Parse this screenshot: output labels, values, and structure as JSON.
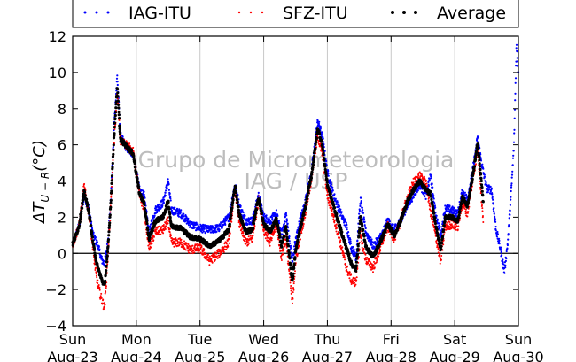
{
  "chart_data": {
    "type": "scatter",
    "title": "",
    "xlabel": "",
    "ylabel": "ΔT",
    "ylabel_sub": "U − R",
    "ylabel_unit": "(°C)",
    "ylim": [
      -4,
      12
    ],
    "yticks": [
      -4,
      -2,
      0,
      2,
      4,
      6,
      8,
      10,
      12
    ],
    "xlim": [
      0,
      7
    ],
    "grid_x": true,
    "grid_y": false,
    "zero_line": true,
    "legend": {
      "placement": "top",
      "frame": true
    },
    "watermark": [
      "Grupo de Micrometeorologia",
      "IAG / USP"
    ],
    "xticks": [
      {
        "x": 0,
        "day": "Sun",
        "date": "Aug-23"
      },
      {
        "x": 1,
        "day": "Mon",
        "date": "Aug-24"
      },
      {
        "x": 2,
        "day": "Tue",
        "date": "Aug-25"
      },
      {
        "x": 3,
        "day": "Wed",
        "date": "Aug-26"
      },
      {
        "x": 4,
        "day": "Thu",
        "date": "Aug-27"
      },
      {
        "x": 5,
        "day": "Fri",
        "date": "Aug-28"
      },
      {
        "x": 6,
        "day": "Sat",
        "date": "Aug-29"
      },
      {
        "x": 7,
        "day": "Sun",
        "date": "Aug-30"
      }
    ],
    "series": [
      {
        "name": "IAG-ITU",
        "color": "#0000ff",
        "xmax": 7.0,
        "points": [
          [
            0.0,
            0.5
          ],
          [
            0.1,
            1.5
          ],
          [
            0.18,
            3.2
          ],
          [
            0.25,
            2.5
          ],
          [
            0.32,
            1.0
          ],
          [
            0.4,
            0.4
          ],
          [
            0.45,
            -0.3
          ],
          [
            0.5,
            -0.6
          ],
          [
            0.55,
            0.5
          ],
          [
            0.6,
            3.0
          ],
          [
            0.65,
            7.0
          ],
          [
            0.7,
            9.8
          ],
          [
            0.75,
            6.5
          ],
          [
            0.85,
            5.8
          ],
          [
            0.95,
            5.5
          ],
          [
            1.05,
            3.5
          ],
          [
            1.12,
            3.2
          ],
          [
            1.2,
            1.2
          ],
          [
            1.3,
            2.4
          ],
          [
            1.42,
            2.8
          ],
          [
            1.5,
            4.0
          ],
          [
            1.55,
            2.4
          ],
          [
            1.7,
            2.2
          ],
          [
            1.85,
            1.6
          ],
          [
            2.0,
            1.4
          ],
          [
            2.15,
            1.3
          ],
          [
            2.3,
            1.4
          ],
          [
            2.45,
            2.0
          ],
          [
            2.55,
            3.8
          ],
          [
            2.62,
            2.6
          ],
          [
            2.72,
            1.8
          ],
          [
            2.82,
            1.8
          ],
          [
            2.92,
            3.2
          ],
          [
            3.0,
            2.0
          ],
          [
            3.1,
            1.8
          ],
          [
            3.2,
            2.2
          ],
          [
            3.28,
            1.0
          ],
          [
            3.35,
            2.2
          ],
          [
            3.45,
            -0.5
          ],
          [
            3.5,
            0.7
          ],
          [
            3.55,
            1.5
          ],
          [
            3.65,
            2.8
          ],
          [
            3.75,
            4.5
          ],
          [
            3.85,
            7.3
          ],
          [
            3.92,
            6.5
          ],
          [
            4.0,
            4.5
          ],
          [
            4.1,
            3.2
          ],
          [
            4.2,
            2.3
          ],
          [
            4.3,
            1.5
          ],
          [
            4.38,
            0.3
          ],
          [
            4.45,
            -0.2
          ],
          [
            4.52,
            3.0
          ],
          [
            4.6,
            1.2
          ],
          [
            4.72,
            0.4
          ],
          [
            4.85,
            1.0
          ],
          [
            4.95,
            1.8
          ],
          [
            5.05,
            1.3
          ],
          [
            5.15,
            1.8
          ],
          [
            5.25,
            2.6
          ],
          [
            5.35,
            3.2
          ],
          [
            5.45,
            3.8
          ],
          [
            5.55,
            3.2
          ],
          [
            5.62,
            4.3
          ],
          [
            5.7,
            2.2
          ],
          [
            5.78,
            1.0
          ],
          [
            5.85,
            2.5
          ],
          [
            5.95,
            2.4
          ],
          [
            6.05,
            2.2
          ],
          [
            6.12,
            3.4
          ],
          [
            6.2,
            3.0
          ],
          [
            6.28,
            4.5
          ],
          [
            6.36,
            6.4
          ],
          [
            6.42,
            5.0
          ],
          [
            6.5,
            3.6
          ],
          [
            6.58,
            3.5
          ],
          [
            6.65,
            1.3
          ],
          [
            6.72,
            0.2
          ],
          [
            6.78,
            -1.0
          ],
          [
            6.83,
            0.5
          ],
          [
            6.88,
            3.0
          ],
          [
            6.93,
            6.0
          ],
          [
            6.97,
            11.5
          ],
          [
            7.0,
            10.0
          ]
        ]
      },
      {
        "name": "SFZ-ITU",
        "color": "#ff0000",
        "xmax": 6.45,
        "points": [
          [
            0.0,
            0.5
          ],
          [
            0.1,
            1.5
          ],
          [
            0.18,
            3.7
          ],
          [
            0.25,
            2.3
          ],
          [
            0.32,
            0.2
          ],
          [
            0.38,
            -1.5
          ],
          [
            0.45,
            -2.5
          ],
          [
            0.5,
            -3.0
          ],
          [
            0.55,
            -0.5
          ],
          [
            0.6,
            2.8
          ],
          [
            0.65,
            6.0
          ],
          [
            0.7,
            8.8
          ],
          [
            0.75,
            6.2
          ],
          [
            0.85,
            6.0
          ],
          [
            0.95,
            5.6
          ],
          [
            1.05,
            3.2
          ],
          [
            1.12,
            2.5
          ],
          [
            1.2,
            0.3
          ],
          [
            1.3,
            1.2
          ],
          [
            1.42,
            1.3
          ],
          [
            1.5,
            1.8
          ],
          [
            1.55,
            0.6
          ],
          [
            1.7,
            0.6
          ],
          [
            1.85,
            0.2
          ],
          [
            2.0,
            0.3
          ],
          [
            2.15,
            -0.4
          ],
          [
            2.3,
            0.0
          ],
          [
            2.45,
            0.6
          ],
          [
            2.55,
            3.6
          ],
          [
            2.62,
            1.6
          ],
          [
            2.72,
            0.6
          ],
          [
            2.82,
            0.8
          ],
          [
            2.92,
            3.0
          ],
          [
            3.0,
            1.3
          ],
          [
            3.1,
            0.6
          ],
          [
            3.2,
            1.6
          ],
          [
            3.28,
            -0.2
          ],
          [
            3.35,
            0.8
          ],
          [
            3.45,
            -2.8
          ],
          [
            3.5,
            -0.5
          ],
          [
            3.55,
            0.5
          ],
          [
            3.65,
            2.2
          ],
          [
            3.75,
            4.2
          ],
          [
            3.85,
            6.5
          ],
          [
            3.92,
            5.5
          ],
          [
            4.0,
            3.2
          ],
          [
            4.1,
            2.0
          ],
          [
            4.2,
            0.6
          ],
          [
            4.3,
            -0.8
          ],
          [
            4.38,
            -1.5
          ],
          [
            4.45,
            -1.6
          ],
          [
            4.52,
            1.0
          ],
          [
            4.6,
            -0.3
          ],
          [
            4.72,
            -0.8
          ],
          [
            4.85,
            0.5
          ],
          [
            4.95,
            1.5
          ],
          [
            5.05,
            0.8
          ],
          [
            5.15,
            1.8
          ],
          [
            5.25,
            3.0
          ],
          [
            5.35,
            3.9
          ],
          [
            5.45,
            4.3
          ],
          [
            5.55,
            3.9
          ],
          [
            5.62,
            2.3
          ],
          [
            5.7,
            1.0
          ],
          [
            5.78,
            -0.5
          ],
          [
            5.85,
            1.5
          ],
          [
            5.95,
            1.6
          ],
          [
            6.05,
            1.5
          ],
          [
            6.12,
            2.8
          ],
          [
            6.2,
            2.2
          ],
          [
            6.28,
            4.0
          ],
          [
            6.36,
            5.8
          ],
          [
            6.42,
            3.0
          ],
          [
            6.45,
            1.8
          ]
        ]
      },
      {
        "name": "Average",
        "color": "#000000",
        "xmax": 6.45,
        "points": [
          [
            0.0,
            0.5
          ],
          [
            0.1,
            1.5
          ],
          [
            0.18,
            3.4
          ],
          [
            0.25,
            2.4
          ],
          [
            0.32,
            0.6
          ],
          [
            0.38,
            -0.6
          ],
          [
            0.45,
            -1.4
          ],
          [
            0.5,
            -1.8
          ],
          [
            0.55,
            0.0
          ],
          [
            0.6,
            2.9
          ],
          [
            0.65,
            6.5
          ],
          [
            0.7,
            9.2
          ],
          [
            0.75,
            6.3
          ],
          [
            0.85,
            5.9
          ],
          [
            0.95,
            5.5
          ],
          [
            1.05,
            3.3
          ],
          [
            1.12,
            2.8
          ],
          [
            1.2,
            0.8
          ],
          [
            1.3,
            1.8
          ],
          [
            1.42,
            2.0
          ],
          [
            1.5,
            2.9
          ],
          [
            1.55,
            1.5
          ],
          [
            1.7,
            1.4
          ],
          [
            1.85,
            0.9
          ],
          [
            2.0,
            0.8
          ],
          [
            2.15,
            0.4
          ],
          [
            2.3,
            0.7
          ],
          [
            2.45,
            1.3
          ],
          [
            2.55,
            3.7
          ],
          [
            2.62,
            2.1
          ],
          [
            2.72,
            1.2
          ],
          [
            2.82,
            1.3
          ],
          [
            2.92,
            3.1
          ],
          [
            3.0,
            1.6
          ],
          [
            3.1,
            1.2
          ],
          [
            3.2,
            1.9
          ],
          [
            3.28,
            0.4
          ],
          [
            3.35,
            1.5
          ],
          [
            3.45,
            -1.6
          ],
          [
            3.5,
            0.1
          ],
          [
            3.55,
            1.0
          ],
          [
            3.65,
            2.5
          ],
          [
            3.75,
            4.3
          ],
          [
            3.85,
            6.9
          ],
          [
            3.92,
            6.0
          ],
          [
            4.0,
            3.8
          ],
          [
            4.1,
            2.6
          ],
          [
            4.2,
            1.4
          ],
          [
            4.3,
            0.3
          ],
          [
            4.38,
            -0.6
          ],
          [
            4.45,
            -0.9
          ],
          [
            4.52,
            2.0
          ],
          [
            4.6,
            0.4
          ],
          [
            4.72,
            -0.2
          ],
          [
            4.85,
            0.8
          ],
          [
            4.95,
            1.6
          ],
          [
            5.05,
            1.0
          ],
          [
            5.15,
            1.8
          ],
          [
            5.25,
            2.8
          ],
          [
            5.35,
            3.5
          ],
          [
            5.45,
            4.0
          ],
          [
            5.55,
            3.5
          ],
          [
            5.62,
            3.3
          ],
          [
            5.7,
            1.6
          ],
          [
            5.78,
            0.2
          ],
          [
            5.85,
            2.0
          ],
          [
            5.95,
            2.0
          ],
          [
            6.05,
            1.8
          ],
          [
            6.12,
            3.1
          ],
          [
            6.2,
            2.6
          ],
          [
            6.28,
            4.2
          ],
          [
            6.36,
            6.1
          ],
          [
            6.42,
            4.0
          ],
          [
            6.45,
            2.7
          ]
        ]
      }
    ]
  }
}
